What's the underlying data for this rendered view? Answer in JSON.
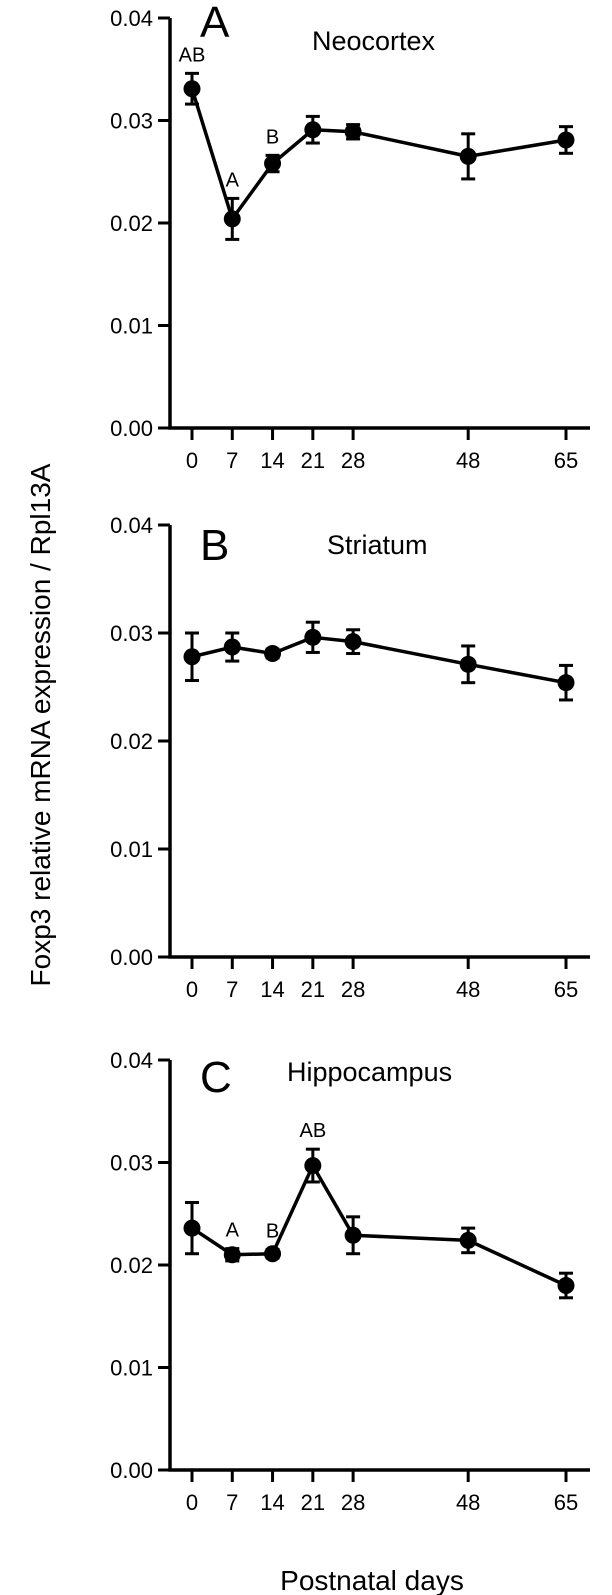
{
  "figure": {
    "ylabel": "Foxp3 relative mRNA expression / Rpl13A",
    "xlabel": "Postnatal days"
  },
  "chart_data": [
    {
      "type": "line",
      "panel_letter": "A",
      "title": "Neocortex",
      "x": [
        0,
        7,
        14,
        21,
        28,
        48,
        65
      ],
      "x_tick_labels": [
        "0",
        "7",
        "14",
        "21",
        "28",
        "48",
        "65"
      ],
      "y_tick_labels": [
        "0.00",
        "0.01",
        "0.02",
        "0.03",
        "0.04"
      ],
      "ylim": [
        0,
        0.04
      ],
      "series": [
        {
          "values": [
            0.0331,
            0.0204,
            0.0258,
            0.0291,
            0.0289,
            0.0265,
            0.0281
          ],
          "errors": [
            0.0015,
            0.002,
            0.0008,
            0.0013,
            0.0007,
            0.0022,
            0.0013
          ]
        }
      ],
      "annotations": [
        {
          "x": 0,
          "text": "AB"
        },
        {
          "x": 7,
          "text": "A"
        },
        {
          "x": 14,
          "text": "B"
        }
      ],
      "grid": false
    },
    {
      "type": "line",
      "panel_letter": "B",
      "title": "Striatum",
      "x": [
        0,
        7,
        14,
        21,
        28,
        48,
        65
      ],
      "x_tick_labels": [
        "0",
        "7",
        "14",
        "21",
        "28",
        "48",
        "65"
      ],
      "y_tick_labels": [
        "0.00",
        "0.01",
        "0.02",
        "0.03",
        "0.04"
      ],
      "ylim": [
        0,
        0.04
      ],
      "series": [
        {
          "values": [
            0.0278,
            0.0287,
            0.0281,
            0.0296,
            0.0292,
            0.0271,
            0.0254
          ],
          "errors": [
            0.0022,
            0.0013,
            0.0004,
            0.0014,
            0.0011,
            0.0017,
            0.0016
          ]
        }
      ],
      "annotations": [],
      "grid": false
    },
    {
      "type": "line",
      "panel_letter": "C",
      "title": "Hippocampus",
      "x": [
        0,
        7,
        14,
        21,
        28,
        48,
        65
      ],
      "x_tick_labels": [
        "0",
        "7",
        "14",
        "21",
        "28",
        "48",
        "65"
      ],
      "y_tick_labels": [
        "0.00",
        "0.01",
        "0.02",
        "0.03",
        "0.04"
      ],
      "ylim": [
        0,
        0.04
      ],
      "series": [
        {
          "values": [
            0.0236,
            0.021,
            0.0211,
            0.0297,
            0.0229,
            0.0224,
            0.018
          ],
          "errors": [
            0.0025,
            0.0006,
            0.0004,
            0.0016,
            0.0018,
            0.0012,
            0.0012
          ]
        }
      ],
      "annotations": [
        {
          "x": 7,
          "text": "A"
        },
        {
          "x": 14,
          "text": "B"
        },
        {
          "x": 21,
          "text": "AB"
        }
      ],
      "grid": false
    }
  ]
}
